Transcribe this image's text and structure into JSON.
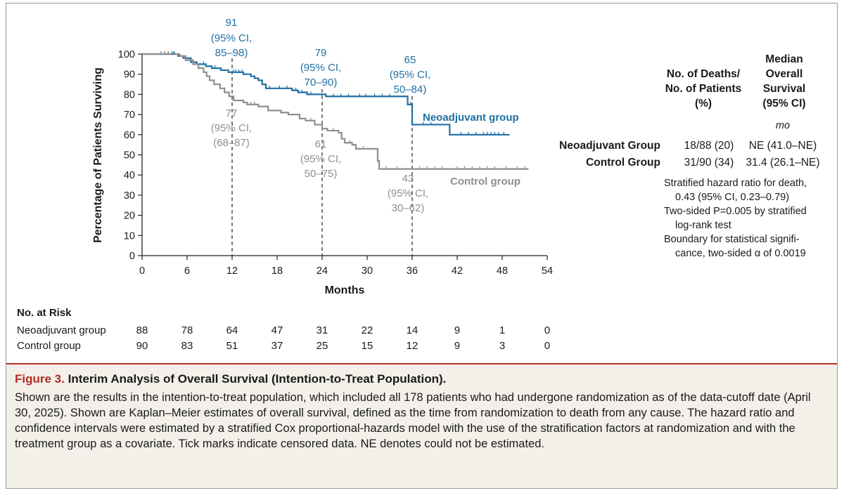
{
  "chart_data": {
    "type": "line",
    "subtype": "kaplan-meier",
    "title": "",
    "xlabel": "Months",
    "ylabel": "Percentage of Patients Surviving",
    "xlim": [
      0,
      54
    ],
    "ylim": [
      0,
      100
    ],
    "xticks": [
      0,
      6,
      12,
      18,
      24,
      30,
      36,
      42,
      48,
      54
    ],
    "yticks": [
      0,
      10,
      20,
      30,
      40,
      50,
      60,
      70,
      80,
      90,
      100
    ],
    "series": [
      {
        "name": "Neoadjuvant group",
        "color": "#1f6fa3",
        "steps": [
          [
            0,
            100
          ],
          [
            4.8,
            99
          ],
          [
            5.5,
            98
          ],
          [
            6.5,
            96
          ],
          [
            7.3,
            95
          ],
          [
            8.5,
            94
          ],
          [
            9.3,
            93
          ],
          [
            10.5,
            92
          ],
          [
            11.5,
            91
          ],
          [
            13.5,
            90
          ],
          [
            14.5,
            89
          ],
          [
            15,
            88
          ],
          [
            15.5,
            87
          ],
          [
            16,
            85
          ],
          [
            16.5,
            83
          ],
          [
            20,
            82
          ],
          [
            20.8,
            81
          ],
          [
            22,
            80
          ],
          [
            24,
            80
          ],
          [
            24.5,
            79
          ],
          [
            35,
            79
          ],
          [
            35.4,
            75
          ],
          [
            36,
            65
          ],
          [
            40.7,
            65
          ],
          [
            41,
            60
          ],
          [
            49,
            60
          ]
        ],
        "censor_times": [
          2.5,
          3,
          3.5,
          4,
          4.3,
          8.2,
          9.7,
          12.2,
          12.5,
          12.9,
          13.3,
          17,
          18.3,
          19.3,
          20.5,
          21.3,
          22.5,
          25.5,
          26.5,
          27.5,
          29,
          29.8,
          31,
          32,
          33,
          35.8,
          37.5,
          38.5,
          42.5,
          43.5,
          44.5,
          45.5,
          46,
          46.5,
          47,
          47.5,
          48.2
        ]
      },
      {
        "name": "Control group",
        "color": "#8f8f8f",
        "steps": [
          [
            0,
            100
          ],
          [
            5,
            99
          ],
          [
            5.8,
            97
          ],
          [
            6.8,
            95
          ],
          [
            7.5,
            93
          ],
          [
            8.2,
            91
          ],
          [
            8.6,
            89
          ],
          [
            9,
            87
          ],
          [
            9.6,
            85
          ],
          [
            10.4,
            83
          ],
          [
            11,
            81
          ],
          [
            11.6,
            79
          ],
          [
            12.2,
            77
          ],
          [
            13.5,
            76
          ],
          [
            14,
            75
          ],
          [
            15.5,
            74
          ],
          [
            16.8,
            72
          ],
          [
            18.5,
            71
          ],
          [
            19.5,
            70
          ],
          [
            21,
            68
          ],
          [
            21.8,
            67
          ],
          [
            23,
            65
          ],
          [
            24,
            63
          ],
          [
            24.7,
            62
          ],
          [
            26.2,
            61
          ],
          [
            26.6,
            58
          ],
          [
            27,
            56
          ],
          [
            28,
            55
          ],
          [
            28.5,
            53
          ],
          [
            31,
            53
          ],
          [
            31.4,
            47
          ],
          [
            31.6,
            43
          ],
          [
            51.5,
            43
          ]
        ],
        "censor_times": [
          2.5,
          3,
          3.5,
          4.2,
          14.5,
          15,
          22.5,
          25.5,
          27.7,
          29.5,
          32.5,
          34,
          37,
          38,
          39,
          40,
          42,
          43,
          44,
          45,
          46,
          47,
          48.5,
          50,
          51
        ]
      }
    ],
    "reference_lines_x": [
      12,
      24,
      36
    ],
    "annotations": {
      "neoadjuvant": [
        {
          "value": "91",
          "ci_prefix": "(95% CI,",
          "ci_range": "85–98)"
        },
        {
          "value": "79",
          "ci_prefix": "(95% CI,",
          "ci_range": "70–90)"
        },
        {
          "value": "65",
          "ci_prefix": "(95% CI,",
          "ci_range": "50–84)"
        }
      ],
      "control": [
        {
          "value": "77",
          "ci_prefix": "(95% CI,",
          "ci_range": "(68–87)"
        },
        {
          "value": "61",
          "ci_prefix": "(95% CI,",
          "ci_range": "50–75)"
        },
        {
          "value": "43",
          "ci_prefix": "(95% CI,",
          "ci_range": "30–62)"
        }
      ]
    },
    "series_labels": {
      "neoadjuvant": "Neoadjuvant group",
      "control": "Control group"
    }
  },
  "summary_table": {
    "col1_header": [
      "No. of Deaths/",
      "No. of Patients",
      "(%)"
    ],
    "col2_header": [
      "Median",
      "Overall",
      "Survival",
      "(95% CI)"
    ],
    "unit_row": "mo",
    "rows": [
      {
        "label": "Neoadjuvant Group",
        "deaths": "18/88 (20)",
        "median": "NE (41.0–NE)"
      },
      {
        "label": "Control Group",
        "deaths": "31/90 (34)",
        "median": "31.4 (26.1–NE)"
      }
    ],
    "notes": [
      "Stratified hazard ratio for death,",
      "0.43 (95% CI, 0.23–0.79)",
      "Two-sided P=0.005 by stratified",
      "log-rank test",
      "Boundary for statistical signifi-",
      "cance, two-sided α of 0.0019"
    ]
  },
  "at_risk": {
    "title": "No. at Risk",
    "rows": [
      {
        "label": "Neoadjuvant group",
        "values": [
          "88",
          "78",
          "64",
          "47",
          "31",
          "22",
          "14",
          "9",
          "1",
          "0"
        ]
      },
      {
        "label": "Control group",
        "values": [
          "90",
          "83",
          "51",
          "37",
          "25",
          "15",
          "12",
          "9",
          "3",
          "0"
        ]
      }
    ]
  },
  "caption": {
    "figure_label": "Figure 3.",
    "title": "Interim Analysis of Overall Survival (Intention-to-Treat Population).",
    "body": "Shown are the results in the intention-to-treat population, which included all 178 patients who had undergone randomization as of the data-cutoff date (April 30, 2025). Shown are Kaplan–Meier estimates of overall survival, defined as the time from randomization to death from any cause. The hazard ratio and confidence intervals were estimated by a stratified Cox proportional-hazards model with the use of the stratification factors at randomization and with the treatment group as a covariate. Tick marks indicate censored data. NE denotes could not be estimated."
  }
}
